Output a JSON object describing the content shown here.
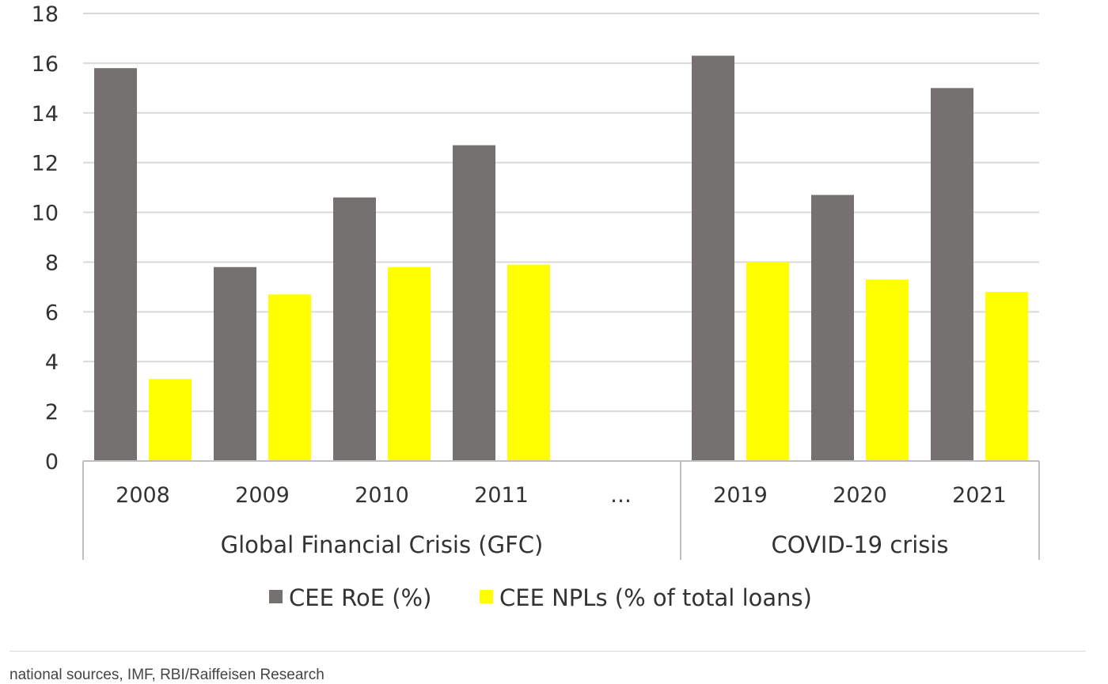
{
  "chart_data": {
    "type": "bar",
    "categories": [
      "2008",
      "2009",
      "2010",
      "2011",
      "…",
      "2019",
      "2020",
      "2021"
    ],
    "groups": [
      {
        "label": "Global Financial Crisis (GFC)",
        "categories": [
          "2008",
          "2009",
          "2010",
          "2011",
          "…"
        ]
      },
      {
        "label": "COVID-19 crisis",
        "categories": [
          "2019",
          "2020",
          "2021"
        ]
      }
    ],
    "series": [
      {
        "name": "CEE RoE (%)",
        "color": "#767171",
        "values": [
          15.8,
          7.8,
          10.6,
          12.7,
          null,
          16.3,
          10.7,
          15.0
        ]
      },
      {
        "name": "CEE NPLs (% of total loans)",
        "color": "#ffff00",
        "values": [
          3.3,
          6.7,
          7.8,
          7.9,
          null,
          8.0,
          7.3,
          6.8
        ]
      }
    ],
    "ylim": [
      0,
      18
    ],
    "yticks": [
      0,
      2,
      4,
      6,
      8,
      10,
      12,
      14,
      16,
      18
    ],
    "grid": true,
    "legend_position": "bottom"
  },
  "source": "national sources, IMF, RBI/Raiffeisen Research"
}
